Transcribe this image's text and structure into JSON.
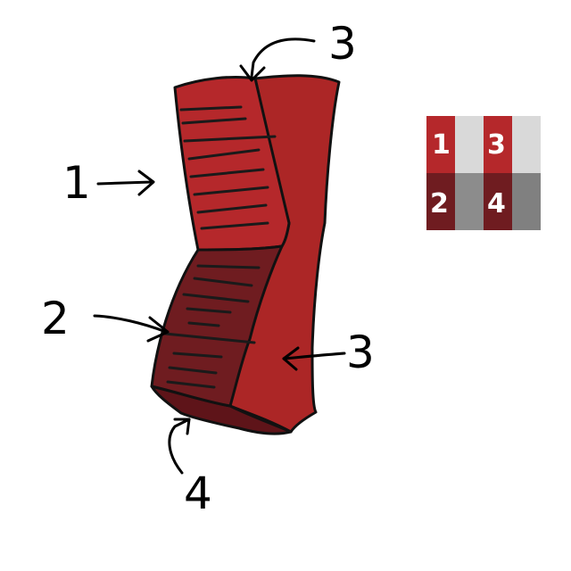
{
  "colors": {
    "face1": "#b5282b",
    "face2": "#6f1c20",
    "face3": "#ac2626",
    "face4": "#5e1419",
    "outline": "#111111",
    "stripe": "#1a1a1a",
    "swatch_gray_light": "#d9d9d9",
    "swatch_gray_mid": "#8c8c8c",
    "swatch_gray_dark": "#808080"
  },
  "callouts": [
    {
      "id": "face-1",
      "label": "1"
    },
    {
      "id": "face-2",
      "label": "2"
    },
    {
      "id": "face-3-top",
      "label": "3"
    },
    {
      "id": "face-3-side",
      "label": "3"
    },
    {
      "id": "face-4",
      "label": "4"
    }
  ],
  "legend": {
    "swatches": [
      {
        "label": "1",
        "color": "#b5282b",
        "gray": "#d9d9d9"
      },
      {
        "label": "3",
        "color": "#b5282b",
        "gray": "#d9d9d9"
      },
      {
        "label": "2",
        "color": "#6f1c20",
        "gray": "#8c8c8c"
      },
      {
        "label": "4",
        "color": "#6f1c20",
        "gray": "#8c8c8c"
      }
    ]
  }
}
